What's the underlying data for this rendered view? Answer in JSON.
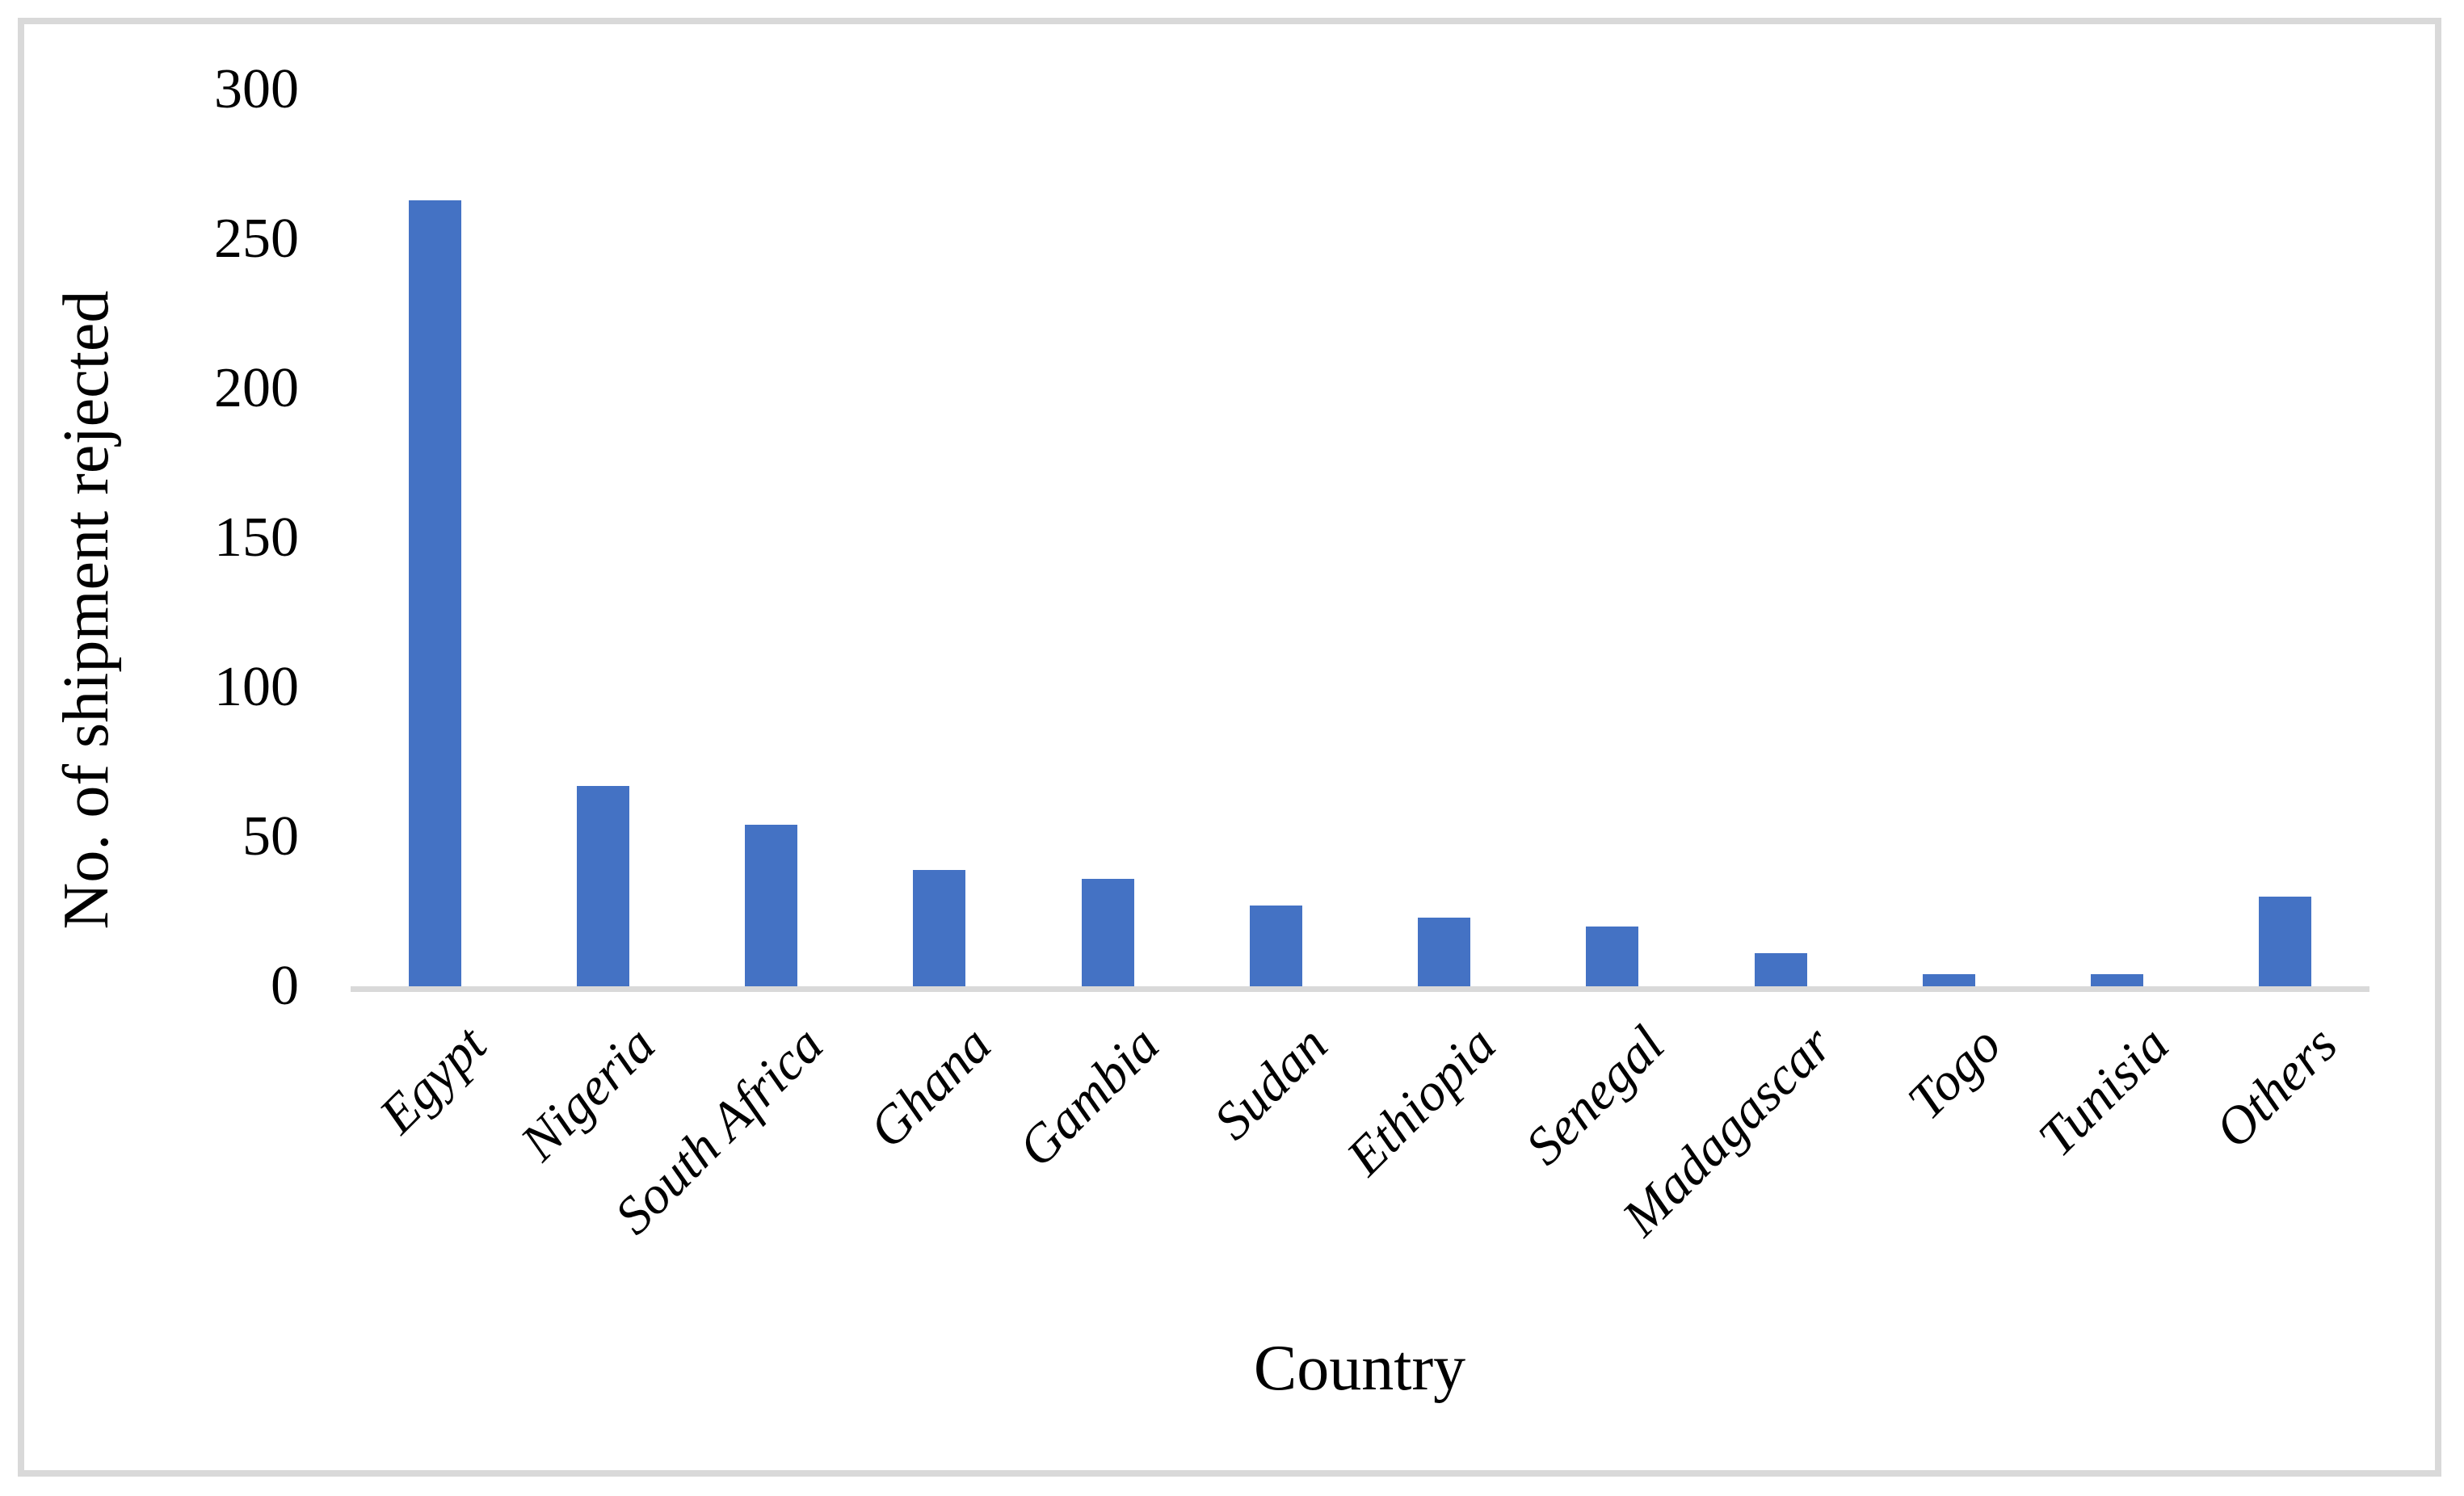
{
  "chart_data": {
    "type": "bar",
    "title": "",
    "categories": [
      "Egypt",
      "Nigeria",
      "South Africa",
      "Ghana",
      "Gambia",
      "Sudan",
      "Ethiopia",
      "Senegal",
      "Madagascar",
      "Togo",
      "Tunisia",
      "Others"
    ],
    "values": [
      263,
      67,
      54,
      39,
      36,
      27,
      23,
      20,
      11,
      4,
      4,
      30
    ],
    "xlabel": "Country",
    "ylabel": "No. of shipment rejected",
    "ylim": [
      0,
      300
    ],
    "yticks": [
      0,
      50,
      100,
      150,
      200,
      250,
      300
    ],
    "grid": false,
    "legend_position": "none",
    "bar_color": "#4472C4",
    "axis_line_color": "#D9D9D9",
    "frame_color": "#D9D9D9",
    "x_label_rotation_deg": 45
  }
}
